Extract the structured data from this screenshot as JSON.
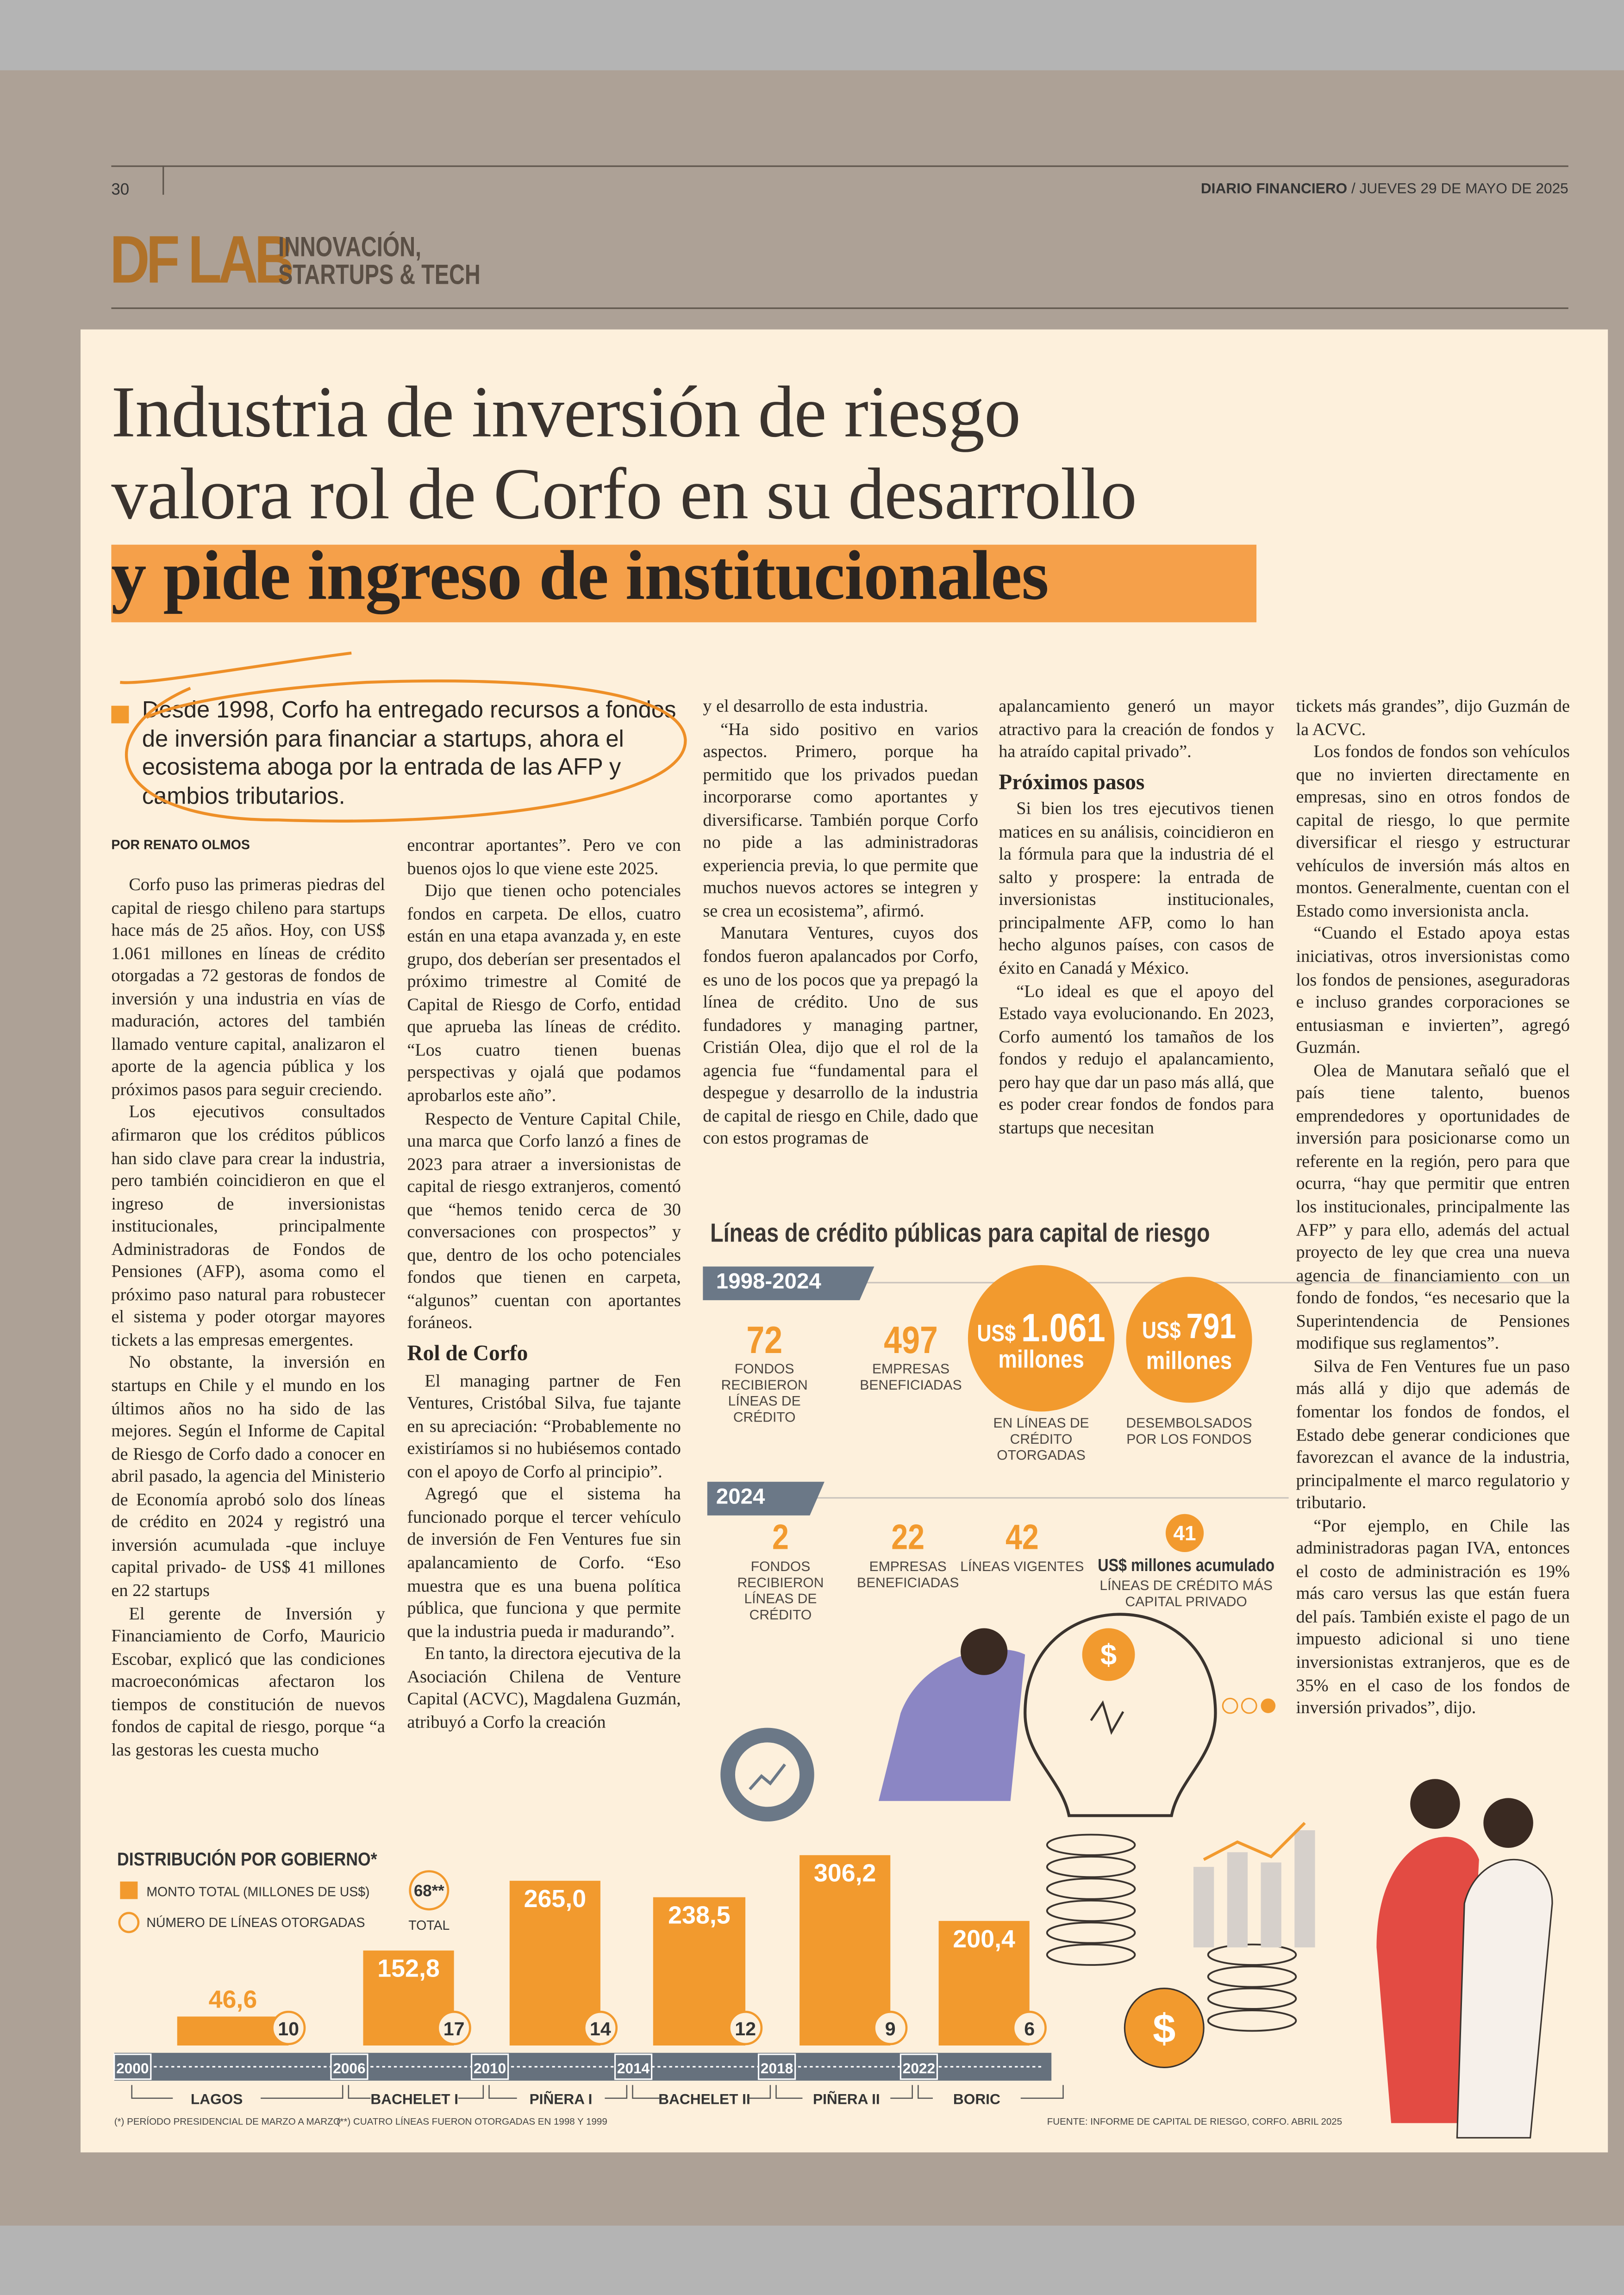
{
  "header": {
    "page_number": "30",
    "publication": "DIARIO FINANCIERO",
    "date": "/ JUEVES 29 DE MAYO DE 2025",
    "section_logo": "DF LAB",
    "section_name": [
      "INNOVACIÓN,",
      "STARTUPS & TECH"
    ]
  },
  "article": {
    "title_lines": [
      "Industria de inversión de riesgo",
      "valora rol de Corfo en su desarrollo",
      "y pide ingreso de institucionales"
    ],
    "lead": "Desde 1998, Corfo ha entregado recursos a fondos de inversión para financiar a startups, ahora el ecosistema aboga por la entrada de las AFP y cambios tributarios.",
    "byline": "POR RENATO OLMOS",
    "columns": [
      [
        "Corfo puso las primeras piedras del capital de riesgo chileno para startups hace más de 25 años. Hoy, con US$ 1.061 millones en líneas de crédito otorgadas a 72 gestoras de fondos de inversión y una industria en vías de maduración, actores del también llamado venture capital, analizaron el aporte de la agencia pública y los próximos pasos para seguir creciendo.",
        "Los ejecutivos consultados afirmaron que los créditos públicos han sido clave para crear la industria, pero también coincidieron en que el ingreso de inversionistas institucionales, principalmente Administradoras de Fondos de Pensiones (AFP), asoma como el próximo paso natural para robustecer el sistema y poder otorgar mayores tickets a las empresas emergentes.",
        "No obstante, la inversión en startups en Chile y el mundo en los últimos años no ha sido de las mejores. Según el Informe de Capital de Riesgo de Corfo dado a conocer en abril pasado, la agencia del Ministerio de Economía aprobó solo dos líneas de crédito en 2024 y registró una inversión acumulada -que incluye capital privado- de US$ 41 millones en 22 startups",
        "El gerente de Inversión y Financiamiento de Corfo, Mauricio Escobar, explicó que las condiciones macroeconómicas afectaron los tiempos de constitución de nuevos fondos de capital de riesgo, porque “a las gestoras les cuesta mucho"
      ],
      [
        "encontrar aportantes”. Pero ve con buenos ojos lo que viene este 2025.",
        "Dijo que tienen ocho potenciales fondos en carpeta. De ellos, cuatro están en una etapa avanzada y, en este grupo, dos deberían ser presentados el próximo trimestre al Comité de Capital de Riesgo de Corfo, entidad que aprueba las líneas de crédito. “Los cuatro tienen buenas perspectivas y ojalá que podamos aprobarlos este año”.",
        "Respecto de Venture Capital Chile, una marca que Corfo lanzó a fines de 2023 para atraer a inversionistas de capital de riesgo extranjeros, comentó que “hemos tenido cerca de 30 conversaciones con prospectos” y que, dentro de los ocho potenciales fondos que tienen en carpeta, “algunos” cuentan con aportantes foráneos.",
        {
          "subhead": "Rol de Corfo"
        },
        "El managing partner de Fen Ventures, Cristóbal Silva, fue tajante en su apreciación: “Probablemente no existiríamos si no hubiésemos contado con el apoyo de Corfo al principio”.",
        "Agregó que el sistema ha funcionado porque el tercer vehículo de inversión de Fen Ventures fue sin apalancamiento de Corfo. “Eso muestra que es una buena política pública, que funciona y que permite que la industria pueda ir madurando”.",
        "En tanto, la directora ejecutiva de la Asociación Chilena de Venture Capital (ACVC), Magdalena Guzmán, atribuyó a Corfo la creación"
      ],
      [
        "y el desarrollo de esta industria.",
        "“Ha sido positivo en varios aspectos. Primero, porque ha permitido que los privados puedan incorporarse como aportantes y diversificarse. También porque Corfo no pide a las administradoras experiencia previa, lo que permite que muchos nuevos actores se integren y se crea un ecosistema”, afirmó.",
        "Manutara Ventures, cuyos dos fondos fueron apalancados por Corfo, es uno de los pocos que ya prepagó la línea de crédito. Uno de sus fundadores y managing partner, Cristián Olea, dijo que el rol de la agencia fue “fundamental para el despegue y desarrollo de la industria de capital de riesgo en Chile, dado que con estos programas de"
      ],
      [
        "apalancamiento generó un mayor atractivo para la creación de fondos y ha atraído capital privado”.",
        {
          "subhead": "Próximos pasos"
        },
        "Si bien los tres ejecutivos tienen matices en su análisis, coincidieron en la fórmula para que la industria dé el salto y prospere: la entrada de inversionistas institucionales, principalmente AFP, como lo han hecho algunos países, con casos de éxito en Canadá y México.",
        "“Lo ideal es que el apoyo del Estado vaya evolucionando. En 2023, Corfo aumentó los tamaños de los fondos y redujo el apalancamiento, pero hay que dar un paso más allá, que es poder crear fondos de fondos para startups que necesitan"
      ],
      [
        "tickets más grandes”, dijo Guzmán de la ACVC.",
        "Los fondos de fondos son vehículos que no invierten directamente en empresas, sino en otros fondos de capital de riesgo, lo que permite diversificar el riesgo y estructurar vehículos de inversión más altos en montos. Generalmente, cuentan con el Estado como inversionista ancla.",
        "“Cuando el Estado apoya estas iniciativas, otros inversionistas como los fondos de pensiones, aseguradoras e incluso grandes corporaciones se entusiasman e invierten”, agregó Guzmán.",
        "Olea de Manutara señaló que el país tiene talento, buenos emprendedores y oportunidades de inversión para posicionarse como un referente en la región, pero para que ocurra, “hay que permitir que entren los institucionales, principalmente las AFP” y para ello, además del actual proyecto de ley que crea una nueva agencia de financiamiento con un fondo de fondos, “es necesario que la Superintendencia de Pensiones modifique sus reglamentos”.",
        "Silva de Fen Ventures fue un paso más allá y dijo que además de fomentar los fondos de fondos, el Estado debe generar condiciones que favorezcan el avance de la industria, principalmente el marco regulatorio y tributario.",
        "“Por ejemplo, en Chile las administradoras pagan IVA, entonces el costo de administración es 19% más caro versus las que están fuera del país. También existe el pago de un impuesto adicional si uno tiene inversionistas extranjeros, que es de 35% en el caso de los fondos de inversión privados”, dijo."
      ]
    ]
  },
  "infographic": {
    "title": "Líneas de crédito públicas para capital de riesgo",
    "period_1": {
      "label": "1998-2024",
      "stats": [
        {
          "value": "72",
          "caption": "FONDOS RECIBIERON LÍNEAS DE CRÉDITO"
        },
        {
          "value": "497",
          "caption": "EMPRESAS BENEFICIADAS"
        }
      ],
      "circles": [
        {
          "currency": "US$",
          "amount": "1.061",
          "unit": "millones",
          "caption": "EN LÍNEAS DE CRÉDITO OTORGADAS"
        },
        {
          "currency": "US$",
          "amount": "791",
          "unit": "millones",
          "caption": "DESEMBOLSADOS POR LOS FONDOS"
        }
      ]
    },
    "period_2": {
      "label": "2024",
      "stats": [
        {
          "value": "2",
          "caption": "FONDOS RECIBIERON LÍNEAS DE CRÉDITO"
        },
        {
          "value": "22",
          "caption": "EMPRESAS BENEFICIADAS"
        },
        {
          "value": "42",
          "caption": "LÍNEAS VIGENTES"
        }
      ],
      "accumulated": {
        "value": "41",
        "unit": "US$ millones acumulado",
        "caption": "LÍNEAS DE CRÉDITO MÁS CAPITAL PRIVADO"
      }
    }
  },
  "distribution": {
    "title": "DISTRIBUCIÓN POR GOBIERNO*",
    "legend": [
      "MONTO TOTAL (MILLONES DE US$)",
      "NÚMERO DE LÍNEAS OTORGADAS"
    ],
    "total": {
      "value": "68**",
      "label": "TOTAL"
    },
    "amounts": [
      46.6,
      152.8,
      265.0,
      238.5,
      306.2,
      200.4
    ],
    "amount_labels": [
      "46,6",
      "152,8",
      "265,0",
      "238,5",
      "306,2",
      "200,4"
    ],
    "lines": [
      10,
      17,
      14,
      12,
      9,
      6
    ],
    "years": [
      "2000",
      "2006",
      "2010",
      "2014",
      "2018",
      "2022"
    ],
    "governments": [
      "LAGOS",
      "BACHELET I",
      "PIÑERA I",
      "BACHELET II",
      "PIÑERA II",
      "BORIC"
    ],
    "notes": [
      "(*) PERÍODO PRESIDENCIAL DE MARZO A MARZO",
      "(**) CUATRO LÍNEAS FUERON OTORGADAS EN 1998 Y 1999"
    ],
    "source": "FUENTE: INFORME DE CAPITAL DE RIESGO, CORFO. ABRIL 2025"
  }
}
